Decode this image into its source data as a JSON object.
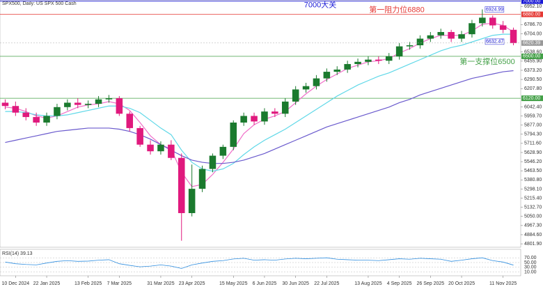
{
  "chart_data": {
    "type": "candlestick",
    "title": "SPX500, Daily: US SPX 500 Cash",
    "categories": [
      null,
      "10 Dec 2024",
      null,
      null,
      "22 Jan 2025",
      null,
      null,
      null,
      "13 Feb 2025",
      null,
      null,
      "7 Mar 2025",
      null,
      null,
      null,
      "31 Mar 2025",
      null,
      null,
      "23 Apr 2025",
      null,
      null,
      null,
      "15 May 2025",
      null,
      null,
      "6 Jun 2025",
      null,
      null,
      "30 Jun 2025",
      null,
      null,
      "22 Jul 2025",
      null,
      null,
      null,
      "13 Aug 2025",
      null,
      null,
      "4 Sep 2025",
      null,
      null,
      "26 Sep 2025",
      null,
      null,
      "20 Oct 2025",
      null,
      null,
      null,
      "11 Nov 2025",
      null
    ],
    "open": [
      6080,
      6050,
      5990,
      5950,
      5900,
      5960,
      6040,
      6080,
      6060,
      6070,
      6110,
      6120,
      5980,
      5850,
      5700,
      5640,
      5700,
      5580,
      5080,
      5300,
      5480,
      5600,
      5680,
      5900,
      5960,
      5910,
      6000,
      5980,
      6090,
      6200,
      6230,
      6300,
      6360,
      6380,
      6430,
      6450,
      6470,
      6460,
      6500,
      6590,
      6600,
      6660,
      6690,
      6720,
      6660,
      6700,
      6800,
      6850,
      6780,
      6740
    ],
    "high": [
      6110,
      6090,
      6030,
      5990,
      5990,
      6070,
      6110,
      6120,
      6100,
      6140,
      6150,
      6140,
      6000,
      5870,
      5740,
      5730,
      5740,
      5620,
      5520,
      5510,
      5620,
      5700,
      5920,
      5990,
      5990,
      6030,
      6030,
      6120,
      6230,
      6260,
      6330,
      6390,
      6410,
      6460,
      6480,
      6500,
      6500,
      6530,
      6620,
      6630,
      6690,
      6720,
      6750,
      6740,
      6730,
      6830,
      6924.99,
      6870,
      6820,
      6760
    ],
    "low": [
      6020,
      5960,
      5920,
      5870,
      5870,
      5930,
      6010,
      6030,
      6030,
      6040,
      6080,
      5960,
      5820,
      5680,
      5610,
      5610,
      5560,
      4830,
      5050,
      5270,
      5450,
      5570,
      5650,
      5870,
      5880,
      5880,
      5950,
      5950,
      6060,
      6170,
      6200,
      6270,
      6330,
      6350,
      6400,
      6420,
      6430,
      6430,
      6470,
      6560,
      6570,
      6630,
      6660,
      6630,
      6630,
      6670,
      6770,
      6750,
      6710,
      6600
    ],
    "close": [
      6050,
      5990,
      5950,
      5900,
      5960,
      6040,
      6080,
      6060,
      6070,
      6110,
      6120,
      5980,
      5850,
      5700,
      5640,
      5700,
      5580,
      5080,
      5300,
      5480,
      5600,
      5680,
      5900,
      5960,
      5910,
      6000,
      5980,
      6090,
      6200,
      6230,
      6300,
      6360,
      6380,
      6430,
      6450,
      6470,
      6460,
      6500,
      6590,
      6600,
      6660,
      6690,
      6720,
      6660,
      6700,
      6800,
      6850,
      6780,
      6740,
      6620.39
    ],
    "up_color": "#1b7a2e",
    "down_color": "#e0197d",
    "overlays": [
      {
        "color": "#f06ec8",
        "values": [
          6040,
          6030,
          6000,
          5960,
          5940,
          5960,
          6000,
          6040,
          6060,
          6070,
          6090,
          6070,
          6010,
          5900,
          5780,
          5700,
          5660,
          5450,
          5320,
          5340,
          5430,
          5540,
          5660,
          5800,
          5880,
          5930,
          5960,
          6000,
          6080,
          6160,
          6230,
          6290,
          6340,
          6390,
          6420,
          6450,
          6460,
          6480,
          6530,
          6570,
          6620,
          6660,
          6690,
          6690,
          6690,
          6730,
          6790,
          6800,
          6780,
          6720
        ]
      },
      {
        "color": "#5fd8e8",
        "values": [
          6000,
          6000,
          5990,
          5970,
          5960,
          5960,
          5970,
          5990,
          6010,
          6030,
          6050,
          6050,
          6030,
          5990,
          5920,
          5850,
          5790,
          5650,
          5540,
          5480,
          5460,
          5480,
          5530,
          5610,
          5680,
          5740,
          5790,
          5840,
          5900,
          5960,
          6020,
          6080,
          6140,
          6190,
          6240,
          6280,
          6320,
          6350,
          6390,
          6430,
          6470,
          6510,
          6550,
          6580,
          6600,
          6630,
          6660,
          6690,
          6700,
          6700
        ]
      },
      {
        "color": "#6a5acd",
        "values": [
          5720,
          5740,
          5760,
          5780,
          5800,
          5820,
          5830,
          5840,
          5850,
          5850,
          5850,
          5840,
          5820,
          5790,
          5750,
          5700,
          5650,
          5600,
          5560,
          5540,
          5530,
          5530,
          5540,
          5560,
          5590,
          5620,
          5660,
          5700,
          5740,
          5780,
          5820,
          5860,
          5890,
          5920,
          5950,
          5980,
          6010,
          6040,
          6080,
          6110,
          6150,
          6180,
          6210,
          6240,
          6270,
          6300,
          6320,
          6340,
          6360,
          6370
        ]
      }
    ],
    "levels": [
      {
        "value": 7000,
        "label": "7000.00",
        "note": "7000大关",
        "color": "#1a1ad6"
      },
      {
        "value": 6880,
        "label": "6880.00",
        "note": "第一阻力位6880",
        "color": "#e53935"
      },
      {
        "value": 6500,
        "label": "6500.00",
        "note": "第一支撑位6500",
        "color": "#43a047"
      },
      {
        "value": 6120,
        "label": "6120.00",
        "color": "#43a047"
      }
    ],
    "marker_values": [
      6632.47
    ],
    "ylim": [
      4790,
      7010
    ],
    "yticks": [
      {
        "value": 4801.9,
        "label": "4801.90"
      },
      {
        "value": 4884.6,
        "label": "4884.60"
      },
      {
        "value": 4967.3,
        "label": "4967.30"
      },
      {
        "value": 5050,
        "label": "5050.00"
      },
      {
        "value": 5132.7,
        "label": "5132.70"
      },
      {
        "value": 5215.4,
        "label": "5215.40"
      },
      {
        "value": 5298.1,
        "label": "5298.10"
      },
      {
        "value": 5380.8,
        "label": "5380.80"
      },
      {
        "value": 5463.5,
        "label": "5463.50"
      },
      {
        "value": 5546.2,
        "label": "5546.20"
      },
      {
        "value": 5628.9,
        "label": "5628.90"
      },
      {
        "value": 5711.6,
        "label": "5711.60"
      },
      {
        "value": 5794.3,
        "label": "5794.30"
      },
      {
        "value": 5877,
        "label": "5877.00"
      },
      {
        "value": 5959.7,
        "label": "5959.70"
      },
      {
        "value": 6042.4,
        "label": "6042.40"
      },
      {
        "value": 6207.8,
        "label": "6207.80"
      },
      {
        "value": 6290.5,
        "label": "6290.50"
      },
      {
        "value": 6373.2,
        "label": "6373.20"
      },
      {
        "value": 6455.9,
        "label": "6455.90"
      },
      {
        "value": 6538.6,
        "label": "6538.60"
      },
      {
        "value": 6704,
        "label": "6704.00"
      },
      {
        "value": 6786.7,
        "label": "6786.70"
      },
      {
        "value": 6952.1,
        "label": "6952.10"
      }
    ],
    "rsi": {
      "title": "RSI(14) 39.13",
      "color": "#2f8ee0",
      "values": [
        52,
        45,
        42,
        40,
        48,
        55,
        58,
        55,
        56,
        60,
        62,
        45,
        38,
        32,
        35,
        40,
        35,
        25,
        40,
        48,
        55,
        58,
        65,
        68,
        60,
        62,
        60,
        65,
        68,
        66,
        68,
        70,
        64,
        62,
        60,
        60,
        58,
        62,
        66,
        64,
        68,
        66,
        64,
        55,
        60,
        66,
        70,
        58,
        52,
        39.13
      ],
      "ylim": [
        0,
        100
      ],
      "yticks": [
        {
          "value": 70,
          "label": "70.00"
        },
        {
          "value": 50,
          "label": "50.00"
        },
        {
          "value": 30,
          "label": "30.00"
        },
        {
          "value": 10,
          "label": "10.00"
        }
      ]
    }
  }
}
